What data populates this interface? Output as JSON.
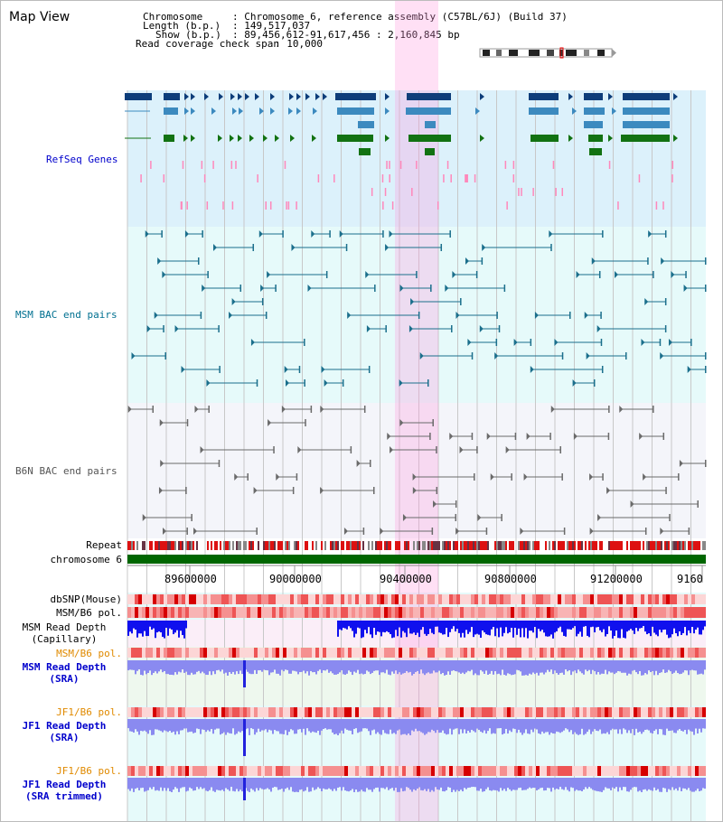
{
  "page": {
    "view_title": "Map View",
    "info": {
      "chromosome_label": "Chromosome",
      "chromosome_value": ": Chromosome 6, reference assembly (C57BL/6J) (Build 37)",
      "length_label": "Length (b.p.)",
      "length_value": ": 149,517,037",
      "show_label": "Show (b.p.)",
      "show_value": ": 89,456,612-91,617,456 : 2,160,845 bp",
      "coverage_label": "Read coverage check span",
      "coverage_value": ": 10,000"
    }
  },
  "tracks": {
    "refseq": {
      "label": "RefSeq Genes",
      "color": "#0000cc"
    },
    "msm_bac": {
      "label": "MSM BAC end pairs",
      "color": "#007090"
    },
    "b6n_bac": {
      "label": "B6N BAC end pairs",
      "color": "#555555"
    },
    "repeat": {
      "label": "Repeat"
    },
    "chromosome": {
      "label": "chromosome 6"
    },
    "dbsnp": {
      "label": "dbSNP(Mouse)"
    },
    "msm_b6_pol_1": {
      "label": "MSM/B6 pol."
    },
    "msm_read_depth_cap": {
      "label1": "MSM Read Depth",
      "label2": "(Capillary)"
    },
    "msm_b6_pol_2": {
      "label": "MSM/B6 pol.",
      "color": "#e08a00"
    },
    "msm_read_depth_sra": {
      "label1": "MSM Read Depth",
      "label2": "(SRA)",
      "color": "#0000cc"
    },
    "jf1_b6_pol_1": {
      "label": "JF1/B6 pol.",
      "color": "#e08a00"
    },
    "jf1_read_depth_sra": {
      "label1": "JF1 Read Depth",
      "label2": "(SRA)",
      "color": "#0000cc"
    },
    "jf1_b6_pol_2": {
      "label": "JF1/B6 pol.",
      "color": "#e08a00"
    },
    "jf1_read_depth_trim": {
      "label1": "JF1 Read Depth",
      "label2": "(SRA trimmed)",
      "color": "#0000cc"
    }
  },
  "ruler": {
    "ticks": [
      "89600000",
      "90000000",
      "90400000",
      "90800000",
      "91200000",
      "9160"
    ]
  },
  "highlight": {
    "color": "#ff99dd"
  }
}
